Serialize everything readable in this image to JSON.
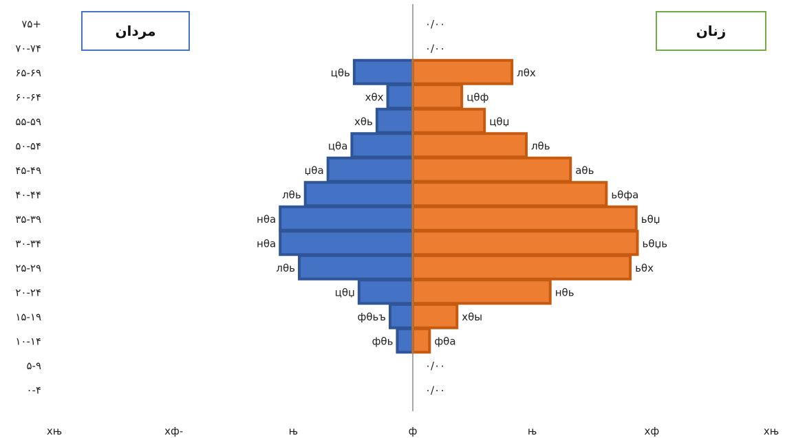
{
  "chart_data": {
    "type": "bar",
    "orientation": "horizontal",
    "categories": [
      "۷۵+",
      "۷۰-۷۴",
      "۶۵-۶۹",
      "۶۰-۶۴",
      "۵۵-۵۹",
      "۵۰-۵۴",
      "۴۵-۴۹",
      "۴۰-۴۴",
      "۳۵-۳۹",
      "۳۰-۳۴",
      "۲۵-۲۹",
      "۲۰-۲۴",
      "۱۵-۱۹",
      "۱۰-۱۴",
      "۵-۹",
      "۰-۴"
    ],
    "series": [
      {
        "name": "مردان",
        "side": "left",
        "color": "#4472c4",
        "border": "#2f5597",
        "values": [
          0,
          0,
          4.9,
          2.1,
          3.0,
          5.1,
          7.1,
          9.0,
          11.1,
          11.1,
          9.5,
          4.5,
          1.9,
          1.3,
          0,
          0
        ],
        "labels": [
          "",
          "",
          "цθь",
          "хθх",
          "хθь",
          "цθа",
          "џθа",
          "лθь",
          "нθа",
          "нθа",
          "лθь",
          "цθџ",
          "фθьъ",
          "фθь",
          "",
          ""
        ]
      },
      {
        "name": "زنان",
        "side": "right",
        "color": "#ed7d31",
        "border": "#c55a11",
        "values": [
          0,
          0,
          8.3,
          4.1,
          6.0,
          9.5,
          13.2,
          16.2,
          18.7,
          18.8,
          18.2,
          11.5,
          3.7,
          1.4,
          0,
          0
        ],
        "labels": [
          "۰/۰۰",
          "۰/۰۰",
          "лθх",
          "цθф",
          "цθџ",
          "лθь",
          "аθь",
          "ьθфа",
          "ьθџ",
          "ьθџь",
          "ьθх",
          "нθь",
          "хθы",
          "фθа",
          "۰/۰۰",
          "۰/۰۰"
        ]
      }
    ],
    "xlim": [
      -30,
      30
    ],
    "xticks": [
      -30,
      -20,
      -10,
      0,
      10,
      20,
      30
    ],
    "xtick_labels": [
      "хњ",
      "хф-",
      "њ",
      "ф",
      "њ",
      "хф",
      "хњ"
    ],
    "legend_placement": "top-left and top-right boxes",
    "grid": false,
    "center_axis_color": "#888888"
  }
}
